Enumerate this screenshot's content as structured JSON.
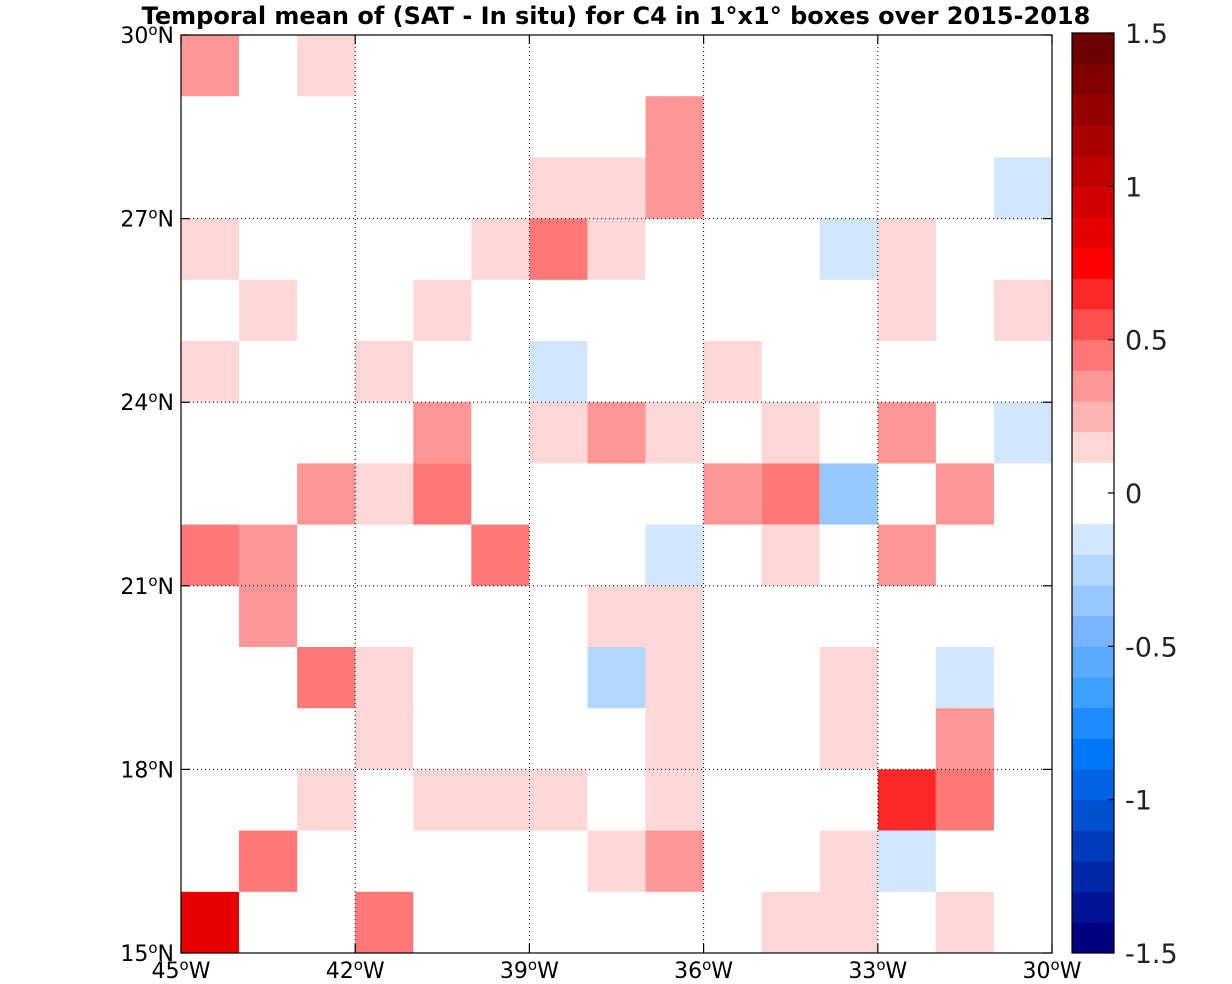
{
  "chart_data": {
    "type": "heatmap",
    "title": "Temporal mean of (SAT - In situ) for C4 in 1°x1° boxes over 2015-2018",
    "xlabel": "",
    "ylabel": "",
    "xlim": [
      -45,
      -30
    ],
    "ylim": [
      15,
      30
    ],
    "grid": true,
    "x_ticks": [
      {
        "value": -45,
        "label": "45°W"
      },
      {
        "value": -42,
        "label": "42°W"
      },
      {
        "value": -39,
        "label": "39°W"
      },
      {
        "value": -36,
        "label": "36°W"
      },
      {
        "value": -33,
        "label": "33°W"
      },
      {
        "value": -30,
        "label": "30°W"
      }
    ],
    "y_ticks": [
      {
        "value": 15,
        "label": "15°N"
      },
      {
        "value": 18,
        "label": "18°N"
      },
      {
        "value": 21,
        "label": "21°N"
      },
      {
        "value": 24,
        "label": "24°N"
      },
      {
        "value": 27,
        "label": "27°N"
      },
      {
        "value": 30,
        "label": "30°N"
      }
    ],
    "cell_size_deg": 1,
    "cells": [
      {
        "lon": -45,
        "lat": 29,
        "value": 0.3
      },
      {
        "lon": -43,
        "lat": 29,
        "value": 0.15
      },
      {
        "lon": -37,
        "lat": 28,
        "value": 0.3
      },
      {
        "lon": -39,
        "lat": 27,
        "value": 0.15
      },
      {
        "lon": -38,
        "lat": 27,
        "value": 0.15
      },
      {
        "lon": -37,
        "lat": 27,
        "value": 0.3
      },
      {
        "lon": -31,
        "lat": 27,
        "value": -0.15
      },
      {
        "lon": -45,
        "lat": 26,
        "value": 0.15
      },
      {
        "lon": -40,
        "lat": 26,
        "value": 0.15
      },
      {
        "lon": -39,
        "lat": 26,
        "value": 0.45
      },
      {
        "lon": -38,
        "lat": 26,
        "value": 0.15
      },
      {
        "lon": -34,
        "lat": 26,
        "value": -0.15
      },
      {
        "lon": -33,
        "lat": 26,
        "value": 0.15
      },
      {
        "lon": -44,
        "lat": 25,
        "value": 0.15
      },
      {
        "lon": -41,
        "lat": 25,
        "value": 0.15
      },
      {
        "lon": -33,
        "lat": 25,
        "value": 0.15
      },
      {
        "lon": -31,
        "lat": 25,
        "value": 0.15
      },
      {
        "lon": -45,
        "lat": 24,
        "value": 0.15
      },
      {
        "lon": -42,
        "lat": 24,
        "value": 0.15
      },
      {
        "lon": -39,
        "lat": 24,
        "value": -0.15
      },
      {
        "lon": -36,
        "lat": 24,
        "value": 0.15
      },
      {
        "lon": -41,
        "lat": 23,
        "value": 0.3
      },
      {
        "lon": -39,
        "lat": 23,
        "value": 0.15
      },
      {
        "lon": -38,
        "lat": 23,
        "value": 0.3
      },
      {
        "lon": -37,
        "lat": 23,
        "value": 0.15
      },
      {
        "lon": -35,
        "lat": 23,
        "value": 0.15
      },
      {
        "lon": -33,
        "lat": 23,
        "value": 0.3
      },
      {
        "lon": -31,
        "lat": 23,
        "value": -0.15
      },
      {
        "lon": -43,
        "lat": 22,
        "value": 0.3
      },
      {
        "lon": -42,
        "lat": 22,
        "value": 0.15
      },
      {
        "lon": -41,
        "lat": 22,
        "value": 0.4
      },
      {
        "lon": -36,
        "lat": 22,
        "value": 0.3
      },
      {
        "lon": -35,
        "lat": 22,
        "value": 0.45
      },
      {
        "lon": -34,
        "lat": 22,
        "value": -0.35
      },
      {
        "lon": -32,
        "lat": 22,
        "value": 0.3
      },
      {
        "lon": -45,
        "lat": 21,
        "value": 0.4
      },
      {
        "lon": -44,
        "lat": 21,
        "value": 0.3
      },
      {
        "lon": -40,
        "lat": 21,
        "value": 0.45
      },
      {
        "lon": -37,
        "lat": 21,
        "value": -0.15
      },
      {
        "lon": -35,
        "lat": 21,
        "value": 0.15
      },
      {
        "lon": -33,
        "lat": 21,
        "value": 0.3
      },
      {
        "lon": -44,
        "lat": 20,
        "value": 0.3
      },
      {
        "lon": -38,
        "lat": 20,
        "value": 0.15
      },
      {
        "lon": -37,
        "lat": 20,
        "value": 0.15
      },
      {
        "lon": -43,
        "lat": 19,
        "value": 0.45
      },
      {
        "lon": -42,
        "lat": 19,
        "value": 0.15
      },
      {
        "lon": -38,
        "lat": 19,
        "value": -0.25
      },
      {
        "lon": -37,
        "lat": 19,
        "value": 0.15
      },
      {
        "lon": -34,
        "lat": 19,
        "value": 0.15
      },
      {
        "lon": -32,
        "lat": 19,
        "value": -0.15
      },
      {
        "lon": -42,
        "lat": 18,
        "value": 0.15
      },
      {
        "lon": -37,
        "lat": 18,
        "value": 0.15
      },
      {
        "lon": -34,
        "lat": 18,
        "value": 0.15
      },
      {
        "lon": -32,
        "lat": 18,
        "value": 0.3
      },
      {
        "lon": -43,
        "lat": 17,
        "value": 0.15
      },
      {
        "lon": -41,
        "lat": 17,
        "value": 0.15
      },
      {
        "lon": -40,
        "lat": 17,
        "value": 0.15
      },
      {
        "lon": -39,
        "lat": 17,
        "value": 0.15
      },
      {
        "lon": -37,
        "lat": 17,
        "value": 0.15
      },
      {
        "lon": -33,
        "lat": 17,
        "value": 0.6
      },
      {
        "lon": -32,
        "lat": 17,
        "value": 0.45
      },
      {
        "lon": -44,
        "lat": 16,
        "value": 0.45
      },
      {
        "lon": -38,
        "lat": 16,
        "value": 0.15
      },
      {
        "lon": -37,
        "lat": 16,
        "value": 0.3
      },
      {
        "lon": -34,
        "lat": 16,
        "value": 0.15
      },
      {
        "lon": -33,
        "lat": 16,
        "value": -0.15
      },
      {
        "lon": -45,
        "lat": 15,
        "value": 0.8
      },
      {
        "lon": -42,
        "lat": 15,
        "value": 0.4
      },
      {
        "lon": -35,
        "lat": 15,
        "value": 0.15
      },
      {
        "lon": -34,
        "lat": 15,
        "value": 0.15
      },
      {
        "lon": -32,
        "lat": 15,
        "value": 0.15
      }
    ],
    "colorbar": {
      "min": -1.5,
      "max": 1.5,
      "ticks": [
        {
          "value": 1.5,
          "label": "1.5"
        },
        {
          "value": 1,
          "label": "1"
        },
        {
          "value": 0.5,
          "label": "0.5"
        },
        {
          "value": 0,
          "label": "0"
        },
        {
          "value": -0.5,
          "label": "-0.5"
        },
        {
          "value": -1,
          "label": "-1"
        },
        {
          "value": -1.5,
          "label": "-1.5"
        }
      ],
      "colors_bottom_to_top": [
        "#000080",
        "#001494",
        "#0028a8",
        "#003cbc",
        "#0050d0",
        "#0064e4",
        "#0078f8",
        "#1e8cff",
        "#3ca0ff",
        "#5aaaff",
        "#78b4ff",
        "#96c8ff",
        "#b4d7ff",
        "#d2e6ff",
        "#ffffff",
        "#ffffff",
        "#ffd7d7",
        "#ffb4b4",
        "#ff9696",
        "#ff7878",
        "#ff5050",
        "#ff2828",
        "#ff0000",
        "#e60000",
        "#d20000",
        "#be0000",
        "#aa0000",
        "#960000",
        "#820000",
        "#6e0000"
      ]
    }
  }
}
